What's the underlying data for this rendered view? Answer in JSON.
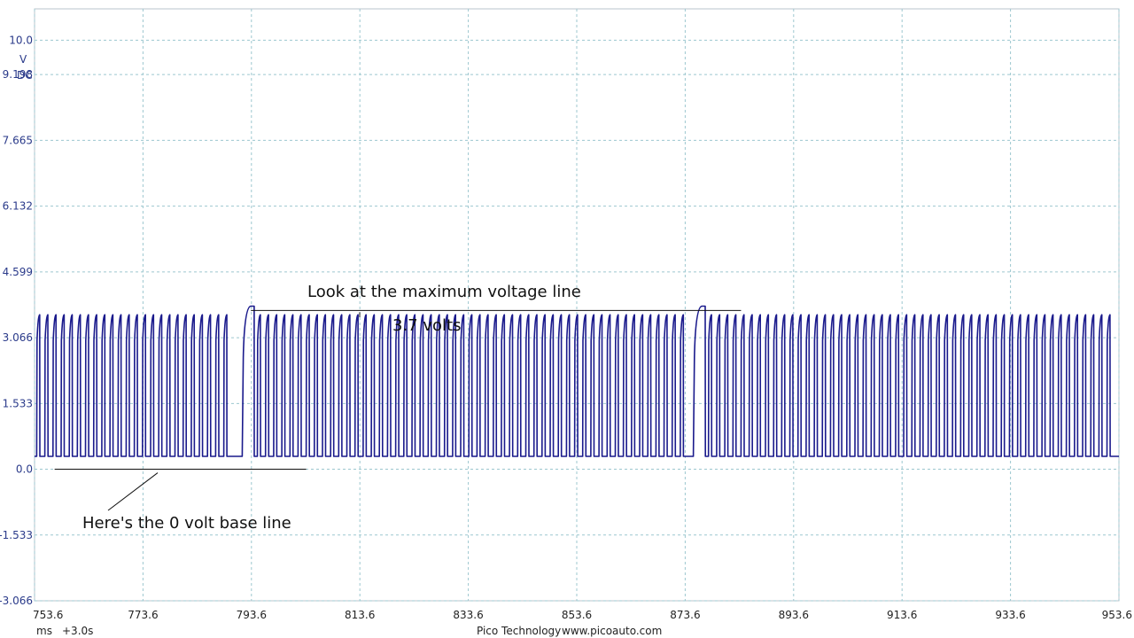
{
  "chart_data": {
    "type": "line",
    "title": "",
    "xlabel": "",
    "ylabel": "",
    "y_unit": "V",
    "coupling": "DC",
    "x_unit": "ms",
    "x_offset": "+3.0s",
    "xlim": [
      753.6,
      953.6
    ],
    "ylim": [
      -3.066,
      10.73
    ],
    "x_ticks": [
      "753.6",
      "773.6",
      "793.6",
      "813.6",
      "833.6",
      "853.6",
      "873.6",
      "893.6",
      "913.6",
      "933.6",
      "953.6"
    ],
    "y_ticks": [
      "10.0",
      "9.198",
      "7.665",
      "6.132",
      "4.599",
      "3.066",
      "1.533",
      "0.0",
      "-1.533",
      "-3.066"
    ],
    "grid": true,
    "series": [
      {
        "color": "#1a1a8c",
        "signal": {
          "low_v": 0.3,
          "high_v": 3.6,
          "period_ms": 1.5,
          "gaps": [
            {
              "start_ms": 791.2,
              "end_ms": 794.1,
              "peak_v": 3.8
            },
            {
              "start_ms": 874.8,
              "end_ms": 877.3,
              "peak_v": 3.8
            }
          ]
        }
      }
    ],
    "annotations": [
      {
        "name": "max-voltage-note",
        "text": "Look at the maximum voltage line"
      },
      {
        "name": "max-voltage-value",
        "text": "3.7 volts",
        "line_x_ms": [
          793.5,
          883.9
        ],
        "line_y_v": 3.7
      },
      {
        "name": "baseline-note",
        "text": "Here's the 0 volt base line",
        "line_x_ms": [
          757.3,
          803.7
        ],
        "line_y_v": 0.0
      }
    ]
  },
  "footer": {
    "vendor": "Pico Technology",
    "website": "www.picoauto.com"
  }
}
